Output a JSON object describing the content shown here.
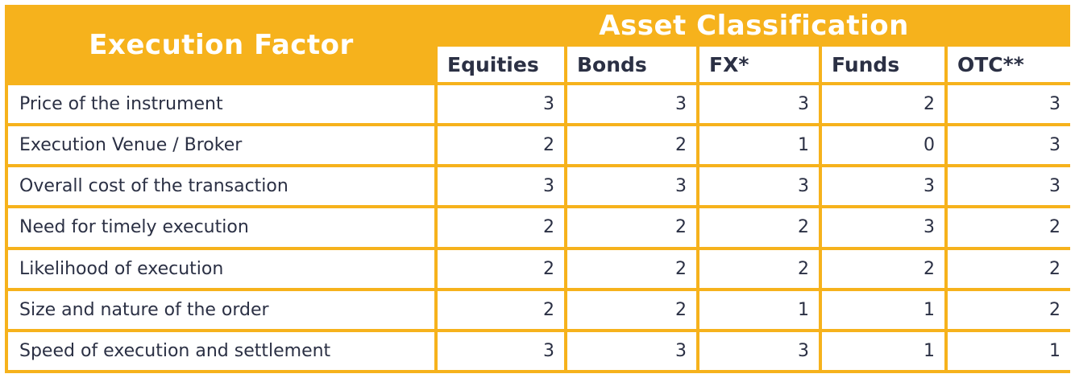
{
  "table": {
    "factor_header": "Execution Factor",
    "group_header": "Asset Classification",
    "columns": [
      "Equities",
      "Bonds",
      "FX*",
      "Funds",
      "OTC**"
    ],
    "rows": [
      {
        "label": "Price of the instrument",
        "values": [
          "3",
          "3",
          "3",
          "2",
          "3"
        ]
      },
      {
        "label": "Execution Venue / Broker",
        "values": [
          "2",
          "2",
          "1",
          "0",
          "3"
        ]
      },
      {
        "label": "Overall cost of the transaction",
        "values": [
          "3",
          "3",
          "3",
          "3",
          "3"
        ]
      },
      {
        "label": "Need for timely execution",
        "values": [
          "2",
          "2",
          "2",
          "3",
          "2"
        ]
      },
      {
        "label": "Likelihood of execution",
        "values": [
          "2",
          "2",
          "2",
          "2",
          "2"
        ]
      },
      {
        "label": "Size and nature of the order",
        "values": [
          "2",
          "2",
          "1",
          "1",
          "2"
        ]
      },
      {
        "label": "Speed of execution and settlement",
        "values": [
          "3",
          "3",
          "3",
          "1",
          "1"
        ]
      }
    ]
  },
  "colors": {
    "accent": "#f6b21c",
    "text": "#2b3044",
    "header_text": "#ffffff"
  }
}
